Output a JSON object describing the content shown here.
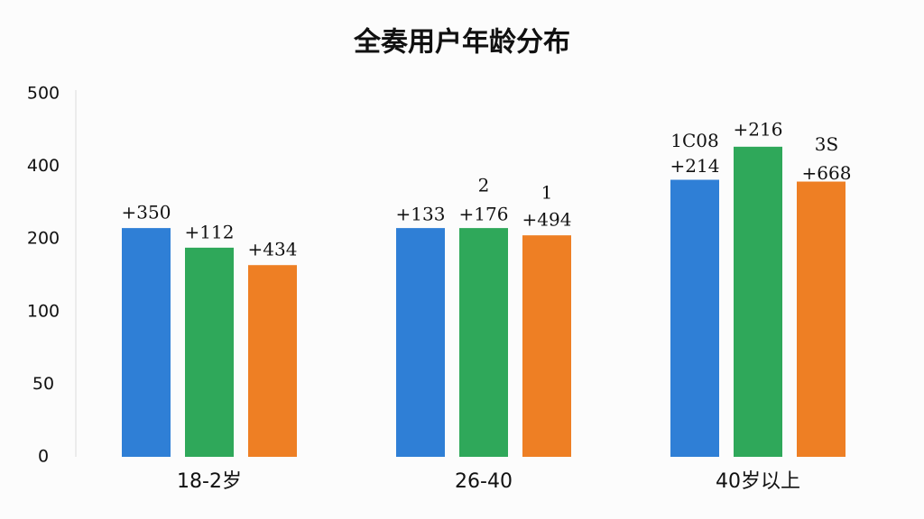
{
  "chart_data": {
    "type": "bar",
    "title": "全奏用户年龄分布",
    "categories": [
      "18-2岁",
      "26-40",
      "40岁以上"
    ],
    "series": [
      {
        "color": "#2f7fd6",
        "values": [
          230,
          230,
          363
        ]
      },
      {
        "color": "#2fa85a",
        "values": [
          188,
          230,
          427
        ]
      },
      {
        "color": "#ee7f24",
        "values": [
          164,
          210,
          358
        ]
      }
    ],
    "ylim": [
      0,
      500
    ],
    "yticks": [
      0,
      50,
      100,
      200,
      400,
      500
    ],
    "grid": false,
    "annotations": [
      "+350",
      "+112",
      "+434",
      "+133",
      "+176",
      "+494",
      "2",
      "1",
      "1C08",
      "+214",
      "+216",
      "3S",
      "+668"
    ]
  }
}
